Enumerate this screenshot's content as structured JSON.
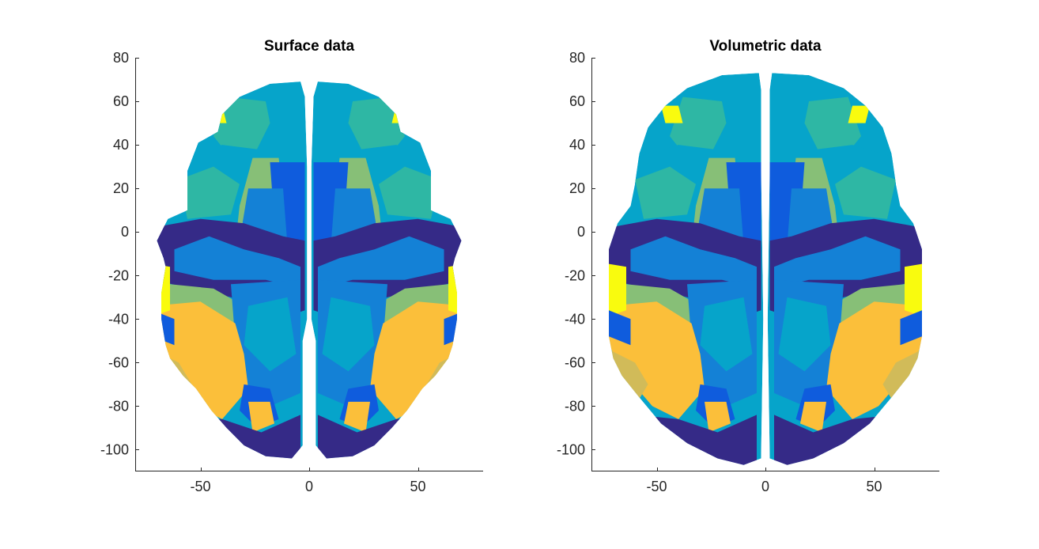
{
  "chart_data": [
    {
      "type": "heatmap",
      "title": "Surface data",
      "xlabel": "",
      "ylabel": "",
      "xlim": [
        -80,
        80
      ],
      "ylim": [
        -110,
        80
      ],
      "xticks": [
        -50,
        0,
        50
      ],
      "xtick_labels": [
        "-50",
        "0",
        "50"
      ],
      "yticks": [
        80,
        60,
        40,
        20,
        0,
        -20,
        -40,
        -60,
        -80,
        -100
      ],
      "ytick_labels": [
        "80",
        "60",
        "40",
        "20",
        "0",
        "-20",
        "-40",
        "-60",
        "-80",
        "-100"
      ],
      "grid": false,
      "legend": "none",
      "brain_extent": {
        "x": [
          -68,
          70
        ],
        "y": [
          -104,
          69
        ]
      },
      "palette": [
        "#352a87",
        "#0f5cdd",
        "#1481d6",
        "#06a4ca",
        "#2eb7a4",
        "#87bf77",
        "#d1bb59",
        "#fbbf3a",
        "#f9fb0e"
      ]
    },
    {
      "type": "heatmap",
      "title": "Volumetric data",
      "xlabel": "",
      "ylabel": "",
      "xlim": [
        -80,
        80
      ],
      "ylim": [
        -110,
        80
      ],
      "xticks": [
        -50,
        0,
        50
      ],
      "xtick_labels": [
        "-50",
        "0",
        "50"
      ],
      "yticks": [
        80,
        60,
        40,
        20,
        0,
        -20,
        -40,
        -60,
        -80,
        -100
      ],
      "ytick_labels": [
        "80",
        "60",
        "40",
        "20",
        "0",
        "-20",
        "-40",
        "-60",
        "-80",
        "-100"
      ],
      "grid": false,
      "legend": "none",
      "brain_extent": {
        "x": [
          -72,
          72
        ],
        "y": [
          -107,
          73
        ]
      },
      "palette": [
        "#352a87",
        "#0f5cdd",
        "#1481d6",
        "#06a4ca",
        "#2eb7a4",
        "#87bf77",
        "#d1bb59",
        "#fbbf3a",
        "#f9fb0e"
      ]
    }
  ]
}
